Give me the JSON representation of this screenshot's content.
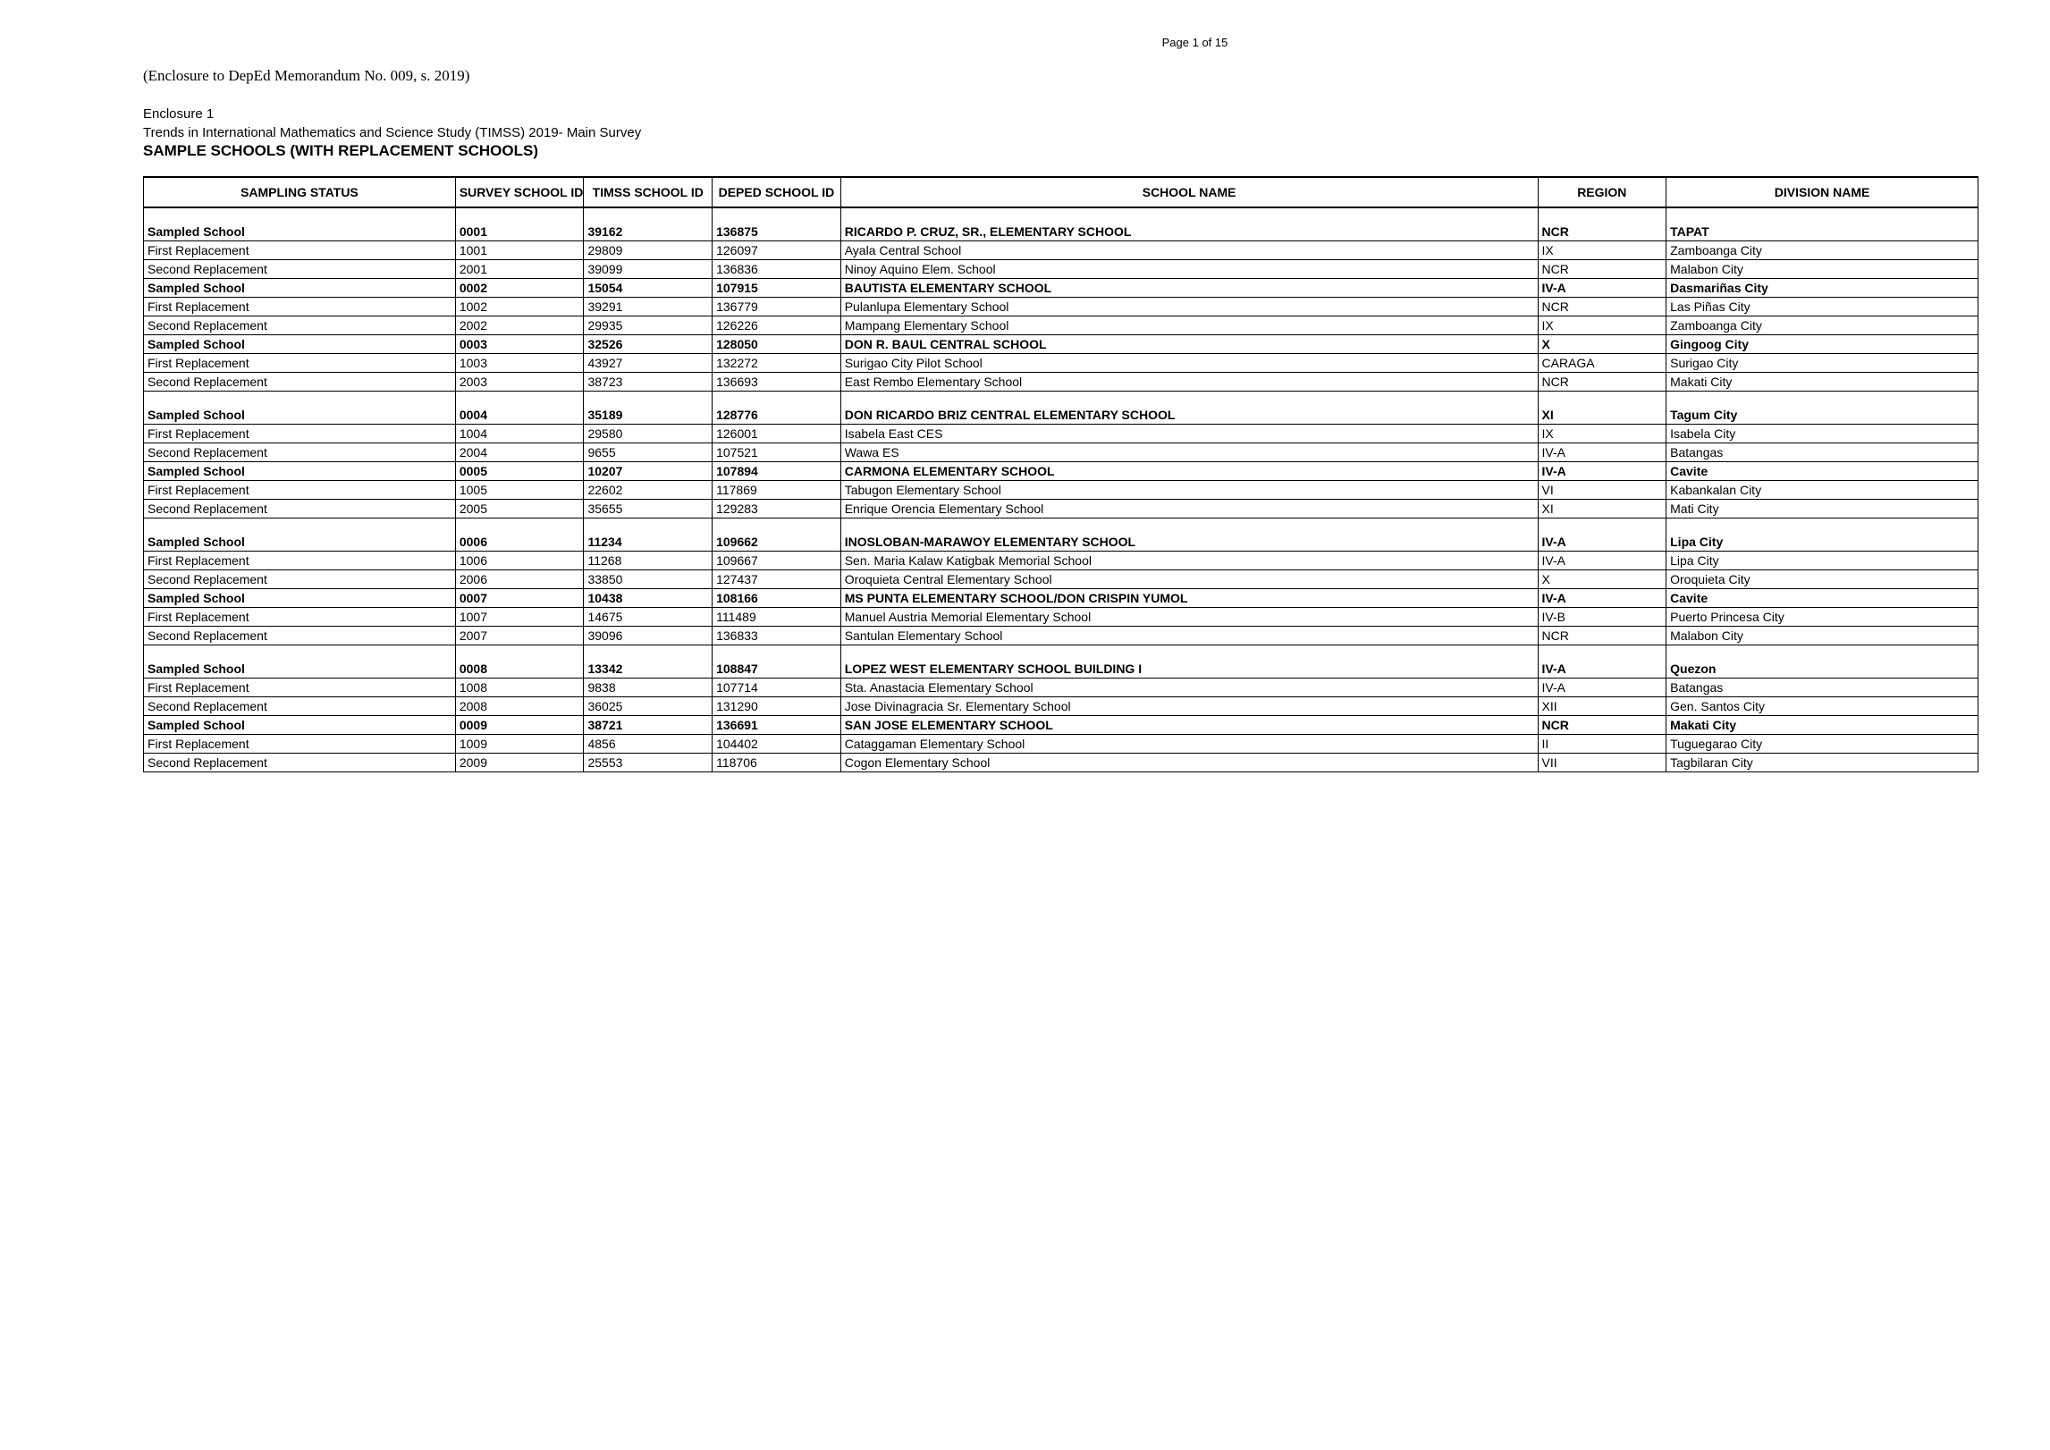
{
  "page_number": "Page 1 of 15",
  "enclosure_ref": "(Enclosure to DepEd Memorandum No. 009, s. 2019)",
  "enclosure_label": "Enclosure 1",
  "study_title": "Trends in International Mathematics and Science Study (TIMSS) 2019- Main Survey",
  "main_title": "SAMPLE SCHOOLS (WITH REPLACEMENT SCHOOLS)",
  "columns": {
    "status": "SAMPLING STATUS",
    "survey": "SURVEY SCHOOL ID",
    "timss": "TIMSS SCHOOL ID",
    "deped": "DEPED SCHOOL ID",
    "name": "SCHOOL NAME",
    "region": "REGION",
    "division": "DIVISION NAME"
  },
  "groups": [
    {
      "gap_before": true,
      "sampled": {
        "status": "Sampled School",
        "survey": "0001",
        "timss": "39162",
        "deped": "136875",
        "name": "RICARDO P. CRUZ, SR., ELEMENTARY SCHOOL",
        "region": "NCR",
        "division": "TAPAT"
      },
      "first": {
        "status": "First Replacement",
        "survey": "1001",
        "timss": "29809",
        "deped": "126097",
        "name": "Ayala Central School",
        "region": "IX",
        "division": "Zamboanga City"
      },
      "second": {
        "status": "Second Replacement",
        "survey": "2001",
        "timss": "39099",
        "deped": "136836",
        "name": "Ninoy Aquino Elem. School",
        "region": "NCR",
        "division": "Malabon City"
      }
    },
    {
      "gap_before": false,
      "sampled": {
        "status": "Sampled School",
        "survey": "0002",
        "timss": "15054",
        "deped": "107915",
        "name": "BAUTISTA ELEMENTARY SCHOOL",
        "region": "IV-A",
        "division": "Dasmariñas City"
      },
      "first": {
        "status": "First Replacement",
        "survey": "1002",
        "timss": "39291",
        "deped": "136779",
        "name": "Pulanlupa Elementary School",
        "region": "NCR",
        "division": "Las Piñas City"
      },
      "second": {
        "status": "Second Replacement",
        "survey": "2002",
        "timss": "29935",
        "deped": "126226",
        "name": "Mampang Elementary School",
        "region": "IX",
        "division": "Zamboanga City"
      }
    },
    {
      "gap_before": false,
      "sampled": {
        "status": "Sampled School",
        "survey": "0003",
        "timss": "32526",
        "deped": "128050",
        "name": "DON R. BAUL CENTRAL SCHOOL",
        "region": "X",
        "division": "Gingoog City"
      },
      "first": {
        "status": "First Replacement",
        "survey": "1003",
        "timss": "43927",
        "deped": "132272",
        "name": "Surigao City Pilot School",
        "region": "CARAGA",
        "division": "Surigao City"
      },
      "second": {
        "status": "Second Replacement",
        "survey": "2003",
        "timss": "38723",
        "deped": "136693",
        "name": "East Rembo Elementary School",
        "region": "NCR",
        "division": "Makati City"
      }
    },
    {
      "gap_before": true,
      "sampled": {
        "status": "Sampled School",
        "survey": "0004",
        "timss": "35189",
        "deped": "128776",
        "name": "DON RICARDO BRIZ CENTRAL ELEMENTARY SCHOOL",
        "region": "XI",
        "division": "Tagum City"
      },
      "first": {
        "status": "First Replacement",
        "survey": "1004",
        "timss": "29580",
        "deped": "126001",
        "name": "Isabela East CES",
        "region": "IX",
        "division": "Isabela City"
      },
      "second": {
        "status": "Second Replacement",
        "survey": "2004",
        "timss": "9655",
        "deped": "107521",
        "name": "Wawa ES",
        "region": "IV-A",
        "division": "Batangas"
      }
    },
    {
      "gap_before": false,
      "sampled": {
        "status": "Sampled School",
        "survey": "0005",
        "timss": "10207",
        "deped": "107894",
        "name": "CARMONA ELEMENTARY SCHOOL",
        "region": "IV-A",
        "division": "Cavite"
      },
      "first": {
        "status": "First Replacement",
        "survey": "1005",
        "timss": "22602",
        "deped": "117869",
        "name": "Tabugon Elementary School",
        "region": "VI",
        "division": "Kabankalan City"
      },
      "second": {
        "status": "Second Replacement",
        "survey": "2005",
        "timss": "35655",
        "deped": "129283",
        "name": "Enrique Orencia Elementary School",
        "region": "XI",
        "division": "Mati City"
      }
    },
    {
      "gap_before": true,
      "sampled": {
        "status": "Sampled School",
        "survey": "0006",
        "timss": "11234",
        "deped": "109662",
        "name": "INOSLOBAN-MARAWOY ELEMENTARY SCHOOL",
        "region": "IV-A",
        "division": "Lipa City"
      },
      "first": {
        "status": "First Replacement",
        "survey": "1006",
        "timss": "11268",
        "deped": "109667",
        "name": "Sen. Maria Kalaw Katigbak Memorial School",
        "region": "IV-A",
        "division": "Lipa City"
      },
      "second": {
        "status": "Second Replacement",
        "survey": "2006",
        "timss": "33850",
        "deped": "127437",
        "name": "Oroquieta Central Elementary School",
        "region": "X",
        "division": "Oroquieta City"
      }
    },
    {
      "gap_before": false,
      "sampled": {
        "status": "Sampled School",
        "survey": "0007",
        "timss": "10438",
        "deped": "108166",
        "name": "MS PUNTA ELEMENTARY SCHOOL/DON CRISPIN YUMOL",
        "region": "IV-A",
        "division": "Cavite"
      },
      "first": {
        "status": "First Replacement",
        "survey": "1007",
        "timss": "14675",
        "deped": "111489",
        "name": "Manuel Austria Memorial Elementary School",
        "region": "IV-B",
        "division": "Puerto Princesa City"
      },
      "second": {
        "status": "Second Replacement",
        "survey": "2007",
        "timss": "39096",
        "deped": "136833",
        "name": "Santulan Elementary School",
        "region": "NCR",
        "division": "Malabon City"
      }
    },
    {
      "gap_before": true,
      "sampled": {
        "status": "Sampled School",
        "survey": "0008",
        "timss": "13342",
        "deped": "108847",
        "name": "LOPEZ WEST ELEMENTARY SCHOOL BUILDING I",
        "region": "IV-A",
        "division": "Quezon"
      },
      "first": {
        "status": "First Replacement",
        "survey": "1008",
        "timss": "9838",
        "deped": "107714",
        "name": "Sta. Anastacia Elementary School",
        "region": "IV-A",
        "division": "Batangas"
      },
      "second": {
        "status": "Second Replacement",
        "survey": "2008",
        "timss": "36025",
        "deped": "131290",
        "name": "Jose Divinagracia Sr. Elementary School",
        "region": "XII",
        "division": "Gen. Santos City"
      }
    },
    {
      "gap_before": false,
      "sampled": {
        "status": "Sampled School",
        "survey": "0009",
        "timss": "38721",
        "deped": "136691",
        "name": "SAN JOSE ELEMENTARY SCHOOL",
        "region": "NCR",
        "division": "Makati City"
      },
      "first": {
        "status": "First Replacement",
        "survey": "1009",
        "timss": "4856",
        "deped": "104402",
        "name": "Cataggaman Elementary School",
        "region": "II",
        "division": "Tuguegarao City"
      },
      "second": {
        "status": "Second Replacement",
        "survey": "2009",
        "timss": "25553",
        "deped": "118706",
        "name": "Cogon Elementary School",
        "region": "VII",
        "division": "Tagbilaran City"
      }
    }
  ]
}
